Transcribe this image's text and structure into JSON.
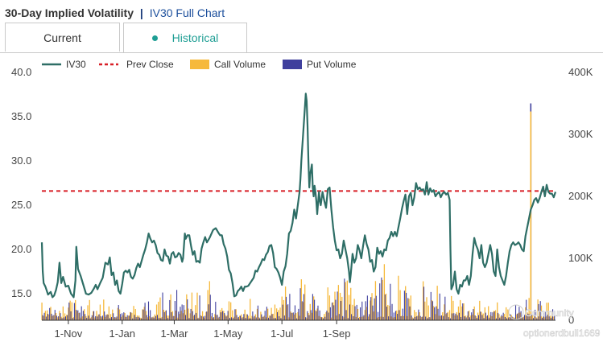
{
  "header": {
    "title": "30-Day Implied Volatility",
    "separator": "|",
    "link": "IV30 Full Chart"
  },
  "tabs": [
    {
      "label": "Current",
      "active": false
    },
    {
      "label": "Historical",
      "active": true
    }
  ],
  "colors": {
    "iv": "#2e6e66",
    "prev_close": "#d81f26",
    "call": "#f6b93c",
    "put": "#3f3f9d",
    "accent": "#1e9e94"
  },
  "watermark": {
    "brand": "Community",
    "user": "optionerdbull1669"
  },
  "chart_data": {
    "type": "line+bar",
    "legend": [
      "IV30",
      "Prev Close",
      "Call Volume",
      "Put Volume"
    ],
    "x_ticks": [
      "1-Nov",
      "1-Jan",
      "1-Mar",
      "1-May",
      "1-Jul",
      "1-Sep"
    ],
    "left_axis": {
      "ticks": [
        "40.0",
        "35.0",
        "30.0",
        "25.0",
        "20.0",
        "15.0"
      ],
      "range": [
        12,
        40
      ]
    },
    "right_axis": {
      "ticks": [
        "400K",
        "300K",
        "200K",
        "100K",
        "0"
      ],
      "range": [
        0,
        400000
      ]
    },
    "prev_close": 26.6,
    "series_iv30": [
      [
        0,
        20.8
      ],
      [
        1,
        17.5
      ],
      [
        2,
        16.2
      ],
      [
        4,
        15.8
      ],
      [
        7,
        14.9
      ],
      [
        10,
        15.2
      ],
      [
        12,
        14.6
      ],
      [
        14,
        14.8
      ],
      [
        16,
        15.4
      ],
      [
        18,
        16.3
      ],
      [
        20,
        18.5
      ],
      [
        22,
        16.2
      ],
      [
        24,
        16.9
      ],
      [
        27,
        15.8
      ],
      [
        30,
        15.9
      ],
      [
        33,
        15.0
      ],
      [
        36,
        14.6
      ],
      [
        38,
        16.5
      ],
      [
        39,
        20.3
      ],
      [
        41,
        17.8
      ],
      [
        44,
        17.0
      ],
      [
        47,
        16.0
      ],
      [
        50,
        15.0
      ],
      [
        53,
        14.9
      ],
      [
        56,
        15.1
      ],
      [
        59,
        15.6
      ],
      [
        61,
        16.0
      ],
      [
        63,
        15.5
      ],
      [
        66,
        16.2
      ],
      [
        69,
        16.8
      ],
      [
        72,
        18.5
      ],
      [
        75,
        18.3
      ],
      [
        77,
        19.1
      ],
      [
        79,
        17.1
      ],
      [
        81,
        17.4
      ],
      [
        83,
        16.0
      ],
      [
        85,
        16.5
      ],
      [
        87,
        15.3
      ],
      [
        89,
        15.0
      ],
      [
        91,
        16.1
      ],
      [
        93,
        17.4
      ],
      [
        95,
        17.6
      ],
      [
        97,
        17.4
      ],
      [
        99,
        17.7
      ],
      [
        101,
        16.9
      ],
      [
        103,
        16.7
      ],
      [
        105,
        17.1
      ],
      [
        107,
        17.9
      ],
      [
        109,
        18.4
      ],
      [
        111,
        18.0
      ],
      [
        113,
        18.7
      ],
      [
        115,
        19.4
      ],
      [
        117,
        20.0
      ],
      [
        119,
        20.8
      ],
      [
        121,
        21.8
      ],
      [
        123,
        21.2
      ],
      [
        125,
        20.8
      ],
      [
        127,
        21.0
      ],
      [
        129,
        20.5
      ],
      [
        131,
        19.6
      ],
      [
        133,
        19.4
      ],
      [
        135,
        18.8
      ],
      [
        137,
        18.7
      ],
      [
        139,
        20.0
      ],
      [
        141,
        19.3
      ],
      [
        143,
        19.2
      ],
      [
        145,
        18.4
      ],
      [
        147,
        19.5
      ],
      [
        149,
        19.7
      ],
      [
        151,
        19.1
      ],
      [
        153,
        19.2
      ],
      [
        155,
        19.6
      ],
      [
        157,
        19.4
      ],
      [
        159,
        18.6
      ],
      [
        160,
        19.0
      ],
      [
        162,
        21.8
      ],
      [
        163,
        21.2
      ],
      [
        165,
        21.6
      ],
      [
        167,
        21.6
      ],
      [
        169,
        20.4
      ],
      [
        171,
        19.4
      ],
      [
        173,
        19.8
      ],
      [
        175,
        18.6
      ],
      [
        177,
        18.7
      ],
      [
        179,
        18.5
      ],
      [
        181,
        20.1
      ],
      [
        183,
        20.8
      ],
      [
        185,
        21.4
      ],
      [
        187,
        20.8
      ],
      [
        190,
        21.3
      ],
      [
        194,
        22.2
      ],
      [
        197,
        22.4
      ],
      [
        200,
        21.9
      ],
      [
        202,
        21.6
      ],
      [
        204,
        21.6
      ],
      [
        206,
        20.6
      ],
      [
        208,
        20.1
      ],
      [
        210,
        19.2
      ],
      [
        212,
        17.7
      ],
      [
        214,
        17.3
      ],
      [
        216,
        16.2
      ],
      [
        218,
        14.7
      ],
      [
        220,
        14.8
      ],
      [
        222,
        15.3
      ],
      [
        224,
        15.5
      ],
      [
        226,
        15.8
      ],
      [
        228,
        15.3
      ],
      [
        230,
        15.8
      ],
      [
        232,
        15.8
      ],
      [
        234,
        15.9
      ],
      [
        236,
        16.2
      ],
      [
        238,
        16.5
      ],
      [
        240,
        16.8
      ],
      [
        242,
        17.6
      ],
      [
        244,
        17.5
      ],
      [
        246,
        18.0
      ],
      [
        248,
        18.4
      ],
      [
        250,
        18.9
      ],
      [
        252,
        18.8
      ],
      [
        254,
        19.4
      ],
      [
        256,
        19.7
      ],
      [
        258,
        20.4
      ],
      [
        260,
        20.5
      ],
      [
        262,
        19.6
      ],
      [
        264,
        18.0
      ],
      [
        266,
        17.8
      ],
      [
        268,
        17.4
      ],
      [
        270,
        16.8
      ],
      [
        272,
        16.0
      ],
      [
        274,
        17.5
      ],
      [
        276,
        18.1
      ],
      [
        278,
        19.5
      ],
      [
        280,
        21.8
      ],
      [
        282,
        22.1
      ],
      [
        284,
        23.0
      ],
      [
        286,
        24.5
      ],
      [
        288,
        23.5
      ],
      [
        290,
        25.0
      ],
      [
        292,
        26.5
      ],
      [
        293,
        28.0
      ],
      [
        294,
        30.0
      ],
      [
        296,
        33.0
      ],
      [
        298,
        36.0
      ],
      [
        299,
        37.6
      ],
      [
        300,
        36.8
      ],
      [
        301,
        34.0
      ],
      [
        302,
        30.0
      ],
      [
        303,
        27.0
      ],
      [
        304,
        28.5
      ],
      [
        305,
        29.0
      ],
      [
        306,
        29.6
      ],
      [
        307,
        27.0
      ],
      [
        308,
        26.0
      ],
      [
        309,
        27.2
      ],
      [
        310,
        26.5
      ],
      [
        311,
        25.5
      ],
      [
        312,
        24.0
      ],
      [
        314,
        26.5
      ],
      [
        315,
        25.5
      ],
      [
        316,
        25.0
      ],
      [
        318,
        26.5
      ],
      [
        320,
        25.5
      ],
      [
        322,
        24.7
      ],
      [
        324,
        26.8
      ],
      [
        326,
        27.0
      ],
      [
        328,
        24.5
      ],
      [
        330,
        22.5
      ],
      [
        332,
        21.0
      ],
      [
        334,
        19.9
      ],
      [
        336,
        20.0
      ],
      [
        338,
        19.0
      ],
      [
        340,
        19.5
      ],
      [
        342,
        21.0
      ],
      [
        344,
        20.0
      ],
      [
        346,
        19.0
      ],
      [
        348,
        17.5
      ],
      [
        349,
        16.3
      ],
      [
        350,
        17.2
      ],
      [
        352,
        19.5
      ],
      [
        354,
        18.5
      ],
      [
        356,
        19.0
      ],
      [
        358,
        20.5
      ],
      [
        360,
        19.9
      ],
      [
        362,
        19.0
      ],
      [
        364,
        20.4
      ],
      [
        366,
        21.6
      ],
      [
        368,
        20.6
      ],
      [
        370,
        20.0
      ],
      [
        372,
        18.6
      ],
      [
        374,
        18.8
      ],
      [
        376,
        17.5
      ],
      [
        378,
        18.0
      ],
      [
        380,
        20.2
      ],
      [
        382,
        19.5
      ],
      [
        384,
        19.8
      ],
      [
        386,
        19.2
      ],
      [
        388,
        20.0
      ],
      [
        390,
        19.9
      ],
      [
        392,
        21.0
      ],
      [
        394,
        21.3
      ],
      [
        396,
        22.0
      ],
      [
        398,
        21.5
      ],
      [
        400,
        22.0
      ],
      [
        402,
        21.5
      ],
      [
        404,
        22.5
      ],
      [
        406,
        23.5
      ],
      [
        408,
        24.6
      ],
      [
        410,
        25.5
      ],
      [
        412,
        26.2
      ],
      [
        414,
        24.0
      ],
      [
        416,
        26.0
      ],
      [
        418,
        26.4
      ],
      [
        420,
        25.0
      ],
      [
        422,
        25.9
      ],
      [
        424,
        27.5
      ],
      [
        426,
        26.8
      ],
      [
        428,
        27.0
      ],
      [
        430,
        26.7
      ],
      [
        432,
        26.8
      ],
      [
        434,
        26.2
      ],
      [
        436,
        27.6
      ],
      [
        438,
        26.2
      ],
      [
        440,
        26.9
      ],
      [
        442,
        26.5
      ],
      [
        444,
        26.7
      ],
      [
        446,
        26.0
      ],
      [
        448,
        26.3
      ],
      [
        450,
        26.5
      ],
      [
        452,
        25.9
      ],
      [
        454,
        26.3
      ],
      [
        456,
        26.5
      ],
      [
        458,
        26.2
      ],
      [
        460,
        26.4
      ],
      [
        461,
        26.0
      ],
      [
        462,
        25.6
      ],
      [
        463,
        20.0
      ],
      [
        464,
        15.5
      ],
      [
        466,
        16.0
      ],
      [
        468,
        17.5
      ],
      [
        470,
        15.5
      ],
      [
        472,
        15.0
      ],
      [
        474,
        16.0
      ],
      [
        476,
        15.8
      ],
      [
        478,
        16.5
      ],
      [
        480,
        16.5
      ],
      [
        482,
        17.0
      ],
      [
        484,
        16.0
      ],
      [
        486,
        17.0
      ],
      [
        488,
        19.5
      ],
      [
        490,
        21.3
      ],
      [
        492,
        20.5
      ],
      [
        494,
        20.0
      ],
      [
        496,
        19.0
      ],
      [
        498,
        20.5
      ],
      [
        500,
        18.5
      ],
      [
        502,
        18.0
      ],
      [
        504,
        18.5
      ],
      [
        506,
        19.5
      ],
      [
        508,
        20.5
      ],
      [
        510,
        19.5
      ],
      [
        512,
        17.5
      ],
      [
        514,
        17.0
      ],
      [
        516,
        20.0
      ],
      [
        518,
        18.0
      ],
      [
        520,
        17.0
      ],
      [
        522,
        16.5
      ],
      [
        524,
        16.0
      ],
      [
        526,
        17.0
      ],
      [
        528,
        18.5
      ],
      [
        530,
        19.8
      ],
      [
        532,
        20.5
      ],
      [
        534,
        20.8
      ],
      [
        536,
        20.5
      ],
      [
        538,
        20.6
      ],
      [
        540,
        20.8
      ],
      [
        542,
        20.5
      ],
      [
        544,
        20.0
      ],
      [
        546,
        19.8
      ],
      [
        548,
        21.5
      ],
      [
        550,
        22.5
      ],
      [
        552,
        23.5
      ],
      [
        554,
        24.5
      ],
      [
        556,
        25.0
      ],
      [
        558,
        25.6
      ],
      [
        560,
        25.8
      ],
      [
        562,
        25.3
      ],
      [
        564,
        25.8
      ],
      [
        566,
        26.5
      ],
      [
        568,
        27.1
      ],
      [
        570,
        26.0
      ],
      [
        572,
        27.3
      ],
      [
        574,
        26.5
      ],
      [
        576,
        26.3
      ],
      [
        578,
        26.3
      ],
      [
        580,
        25.9
      ],
      [
        582,
        26.5
      ]
    ],
    "volume_spike": {
      "day": 554,
      "call": 337000,
      "put": 350000
    }
  }
}
